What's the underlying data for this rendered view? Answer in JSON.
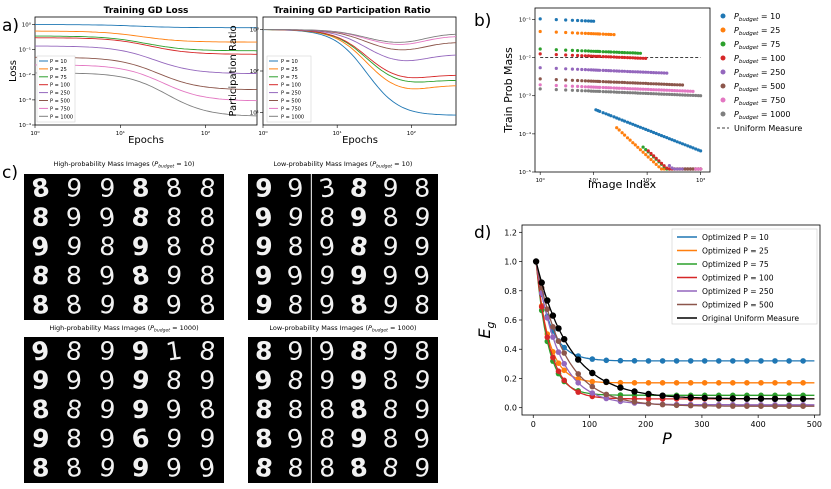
{
  "panel_labels": {
    "a": "a)",
    "b": "b)",
    "c": "c)",
    "d": "d)"
  },
  "colors": {
    "P10": "#1f77b4",
    "P25": "#ff7f0e",
    "P75": "#2ca02c",
    "P100": "#d62728",
    "P250": "#9467bd",
    "P500": "#8c564b",
    "P750": "#e377c2",
    "P1000": "#7f7f7f",
    "uniform": "#000000"
  },
  "chart_data": [
    {
      "id": "loss",
      "type": "line",
      "title": "Training GD Loss",
      "xlabel": "Epochs",
      "ylabel": "Loss",
      "xscale": "log",
      "yscale": "log",
      "xlim": [
        1,
        400
      ],
      "ylim": [
        0.0001,
        2
      ],
      "x_ticks": [
        "10⁰",
        "10¹",
        "10²",
        "10³"
      ],
      "y_ticks": [
        "10⁰",
        "10⁻¹",
        "10⁻²",
        "10⁻³",
        "10⁻⁴"
      ],
      "legend": [
        "P = 10",
        "P = 25",
        "P = 75",
        "P = 100",
        "P = 250",
        "P = 500",
        "P = 750",
        "P = 1000"
      ],
      "legend_position": "lower-left",
      "series": [
        {
          "name": "P = 10",
          "start": 1.0,
          "end": 0.75
        },
        {
          "name": "P = 25",
          "start": 0.55,
          "end": 0.2
        },
        {
          "name": "P = 75",
          "start": 0.35,
          "end": 0.09
        },
        {
          "name": "P = 100",
          "start": 0.3,
          "end": 0.065
        },
        {
          "name": "P = 250",
          "start": 0.14,
          "end": 0.011
        },
        {
          "name": "P = 500",
          "start": 0.05,
          "end": 0.0025
        },
        {
          "name": "P = 750",
          "start": 0.025,
          "end": 0.0009
        },
        {
          "name": "P = 1000",
          "start": 0.012,
          "end": 0.00022
        }
      ]
    },
    {
      "id": "participation",
      "type": "line",
      "title": "Training GD Participation Ratio",
      "xlabel": "Epochs",
      "ylabel": "Participation Ratio",
      "xscale": "log",
      "yscale": "log",
      "xlim": [
        1,
        400
      ],
      "ylim": [
        5,
        2000
      ],
      "x_ticks": [
        "10⁰",
        "10¹",
        "10²",
        "10³"
      ],
      "y_ticks": [
        "10³",
        "10²",
        "10¹"
      ],
      "legend": [
        "P = 10",
        "P = 25",
        "P = 75",
        "P = 100",
        "P = 250",
        "P = 500",
        "P = 750",
        "P = 1000"
      ],
      "legend_position": "lower-left",
      "series": [
        {
          "name": "P = 10",
          "min": 8,
          "end": 8.5
        },
        {
          "name": "P = 25",
          "min": 25,
          "end": 45
        },
        {
          "name": "P = 75",
          "min": 40,
          "end": 60
        },
        {
          "name": "P = 100",
          "min": 50,
          "end": 80
        },
        {
          "name": "P = 250",
          "min": 130,
          "end": 250
        },
        {
          "name": "P = 500",
          "min": 250,
          "end": 500
        },
        {
          "name": "P = 750",
          "min": 350,
          "end": 700
        },
        {
          "name": "P = 1000",
          "min": 400,
          "end": 800
        }
      ]
    },
    {
      "id": "probmass",
      "type": "scatter",
      "xlabel": "Image Index",
      "ylabel": "Train Prob Mass",
      "xscale": "log",
      "yscale": "log",
      "xlim": [
        0.8,
        1500
      ],
      "ylim": [
        1e-05,
        0.2
      ],
      "x_ticks": [
        "10⁰",
        "10¹",
        "10²",
        "10³"
      ],
      "y_ticks": [
        "10⁻¹",
        "10⁻²",
        "10⁻³",
        "10⁻⁴",
        "10⁻⁵"
      ],
      "uniform_level": 0.01,
      "legend_position": "outside-right",
      "series": [
        {
          "name": "P_budget = 10",
          "cut": 10,
          "high": 0.09
        },
        {
          "name": "P_budget = 25",
          "cut": 25,
          "high": 0.04
        },
        {
          "name": "P_budget = 75",
          "cut": 75,
          "high": 0.013
        },
        {
          "name": "P_budget = 100",
          "cut": 100,
          "high": 0.0095
        },
        {
          "name": "P_budget = 250",
          "cut": 250,
          "high": 0.0039
        },
        {
          "name": "P_budget = 500",
          "cut": 500,
          "high": 0.0019
        },
        {
          "name": "P_budget = 750",
          "cut": 750,
          "high": 0.0013
        },
        {
          "name": "P_budget = 1000",
          "cut": 1000,
          "high": 0.001
        }
      ]
    },
    {
      "id": "eg",
      "type": "line",
      "xlabel": "P",
      "ylabel": "E",
      "ylabel_sub": "g",
      "xlim": [
        -20,
        510
      ],
      "ylim": [
        -0.05,
        1.25
      ],
      "x_ticks": [
        0,
        100,
        200,
        300,
        400,
        500
      ],
      "y_ticks": [
        0.0,
        0.2,
        0.4,
        0.6,
        0.8,
        1.0,
        1.2
      ],
      "legend_position": "upper-right",
      "series": [
        {
          "name": "Optimized P = 10",
          "floor": 0.32,
          "rate": 25
        },
        {
          "name": "Optimized P = 25",
          "floor": 0.17,
          "rate": 22
        },
        {
          "name": "Optimized P = 75",
          "floor": 0.085,
          "rate": 22
        },
        {
          "name": "Optimized P = 100",
          "floor": 0.06,
          "rate": 25
        },
        {
          "name": "Optimized P = 250",
          "floor": 0.02,
          "rate": 40
        },
        {
          "name": "Optimized P = 500",
          "floor": 0.01,
          "rate": 50
        },
        {
          "name": "Original Uniform Measure",
          "floor": 0.06,
          "rate": 60
        }
      ]
    }
  ],
  "legend_b": {
    "entries": [
      {
        "base": "P",
        "sub": "budget",
        "tail": " = 10"
      },
      {
        "base": "P",
        "sub": "budget",
        "tail": " = 25"
      },
      {
        "base": "P",
        "sub": "budget",
        "tail": " = 75"
      },
      {
        "base": "P",
        "sub": "budget",
        "tail": " = 100"
      },
      {
        "base": "P",
        "sub": "budget",
        "tail": " = 250"
      },
      {
        "base": "P",
        "sub": "budget",
        "tail": " = 500"
      },
      {
        "base": "P",
        "sub": "budget",
        "tail": " = 750"
      },
      {
        "base": "P",
        "sub": "budget",
        "tail": " = 1000"
      }
    ],
    "uniform": "Uniform Measure"
  },
  "images": {
    "grid_titles": [
      {
        "pre": "High-probability Mass Images (",
        "base": "P",
        "sub": "budget",
        "post": " = 10)"
      },
      {
        "pre": "Low-probability Mass Images (",
        "base": "P",
        "sub": "budget",
        "post": " = 10)"
      },
      {
        "pre": "High-probability Mass Images (",
        "base": "P",
        "sub": "budget",
        "post": " = 1000)"
      },
      {
        "pre": "Low-probability Mass Images (",
        "base": "P",
        "sub": "budget",
        "post": " = 1000)"
      }
    ],
    "grids": [
      [
        "8",
        "9",
        "9",
        "8",
        "8",
        "8",
        "8",
        "9",
        "9",
        "8",
        "8",
        "8",
        "9",
        "9",
        "8",
        "9",
        "8",
        "8",
        "8",
        "8",
        "9",
        "8",
        "9",
        "8",
        "8",
        "8",
        "9",
        "8",
        "9",
        "8"
      ],
      [
        "9",
        "9",
        "3",
        "8",
        "9",
        "8",
        "9",
        "9",
        "8",
        "9",
        "8",
        "9",
        "9",
        "8",
        "9",
        "8",
        "9",
        "9",
        "9",
        "9",
        "9",
        "9",
        "9",
        "9",
        "9",
        "8",
        "9",
        "8",
        "9",
        "8"
      ],
      [
        "9",
        "8",
        "9",
        "9",
        "1",
        "8",
        "9",
        "9",
        "9",
        "9",
        "8",
        "9",
        "8",
        "8",
        "9",
        "9",
        "9",
        "8",
        "9",
        "8",
        "9",
        "6",
        "9",
        "9",
        "8",
        "8",
        "9",
        "9",
        "9",
        "9"
      ],
      [
        "8",
        "9",
        "9",
        "8",
        "9",
        "8",
        "9",
        "8",
        "9",
        "9",
        "8",
        "9",
        "8",
        "8",
        "8",
        "8",
        "8",
        "9",
        "8",
        "9",
        "8",
        "9",
        "8",
        "9",
        "8",
        "8",
        "8",
        "8",
        "8",
        "9"
      ]
    ]
  }
}
